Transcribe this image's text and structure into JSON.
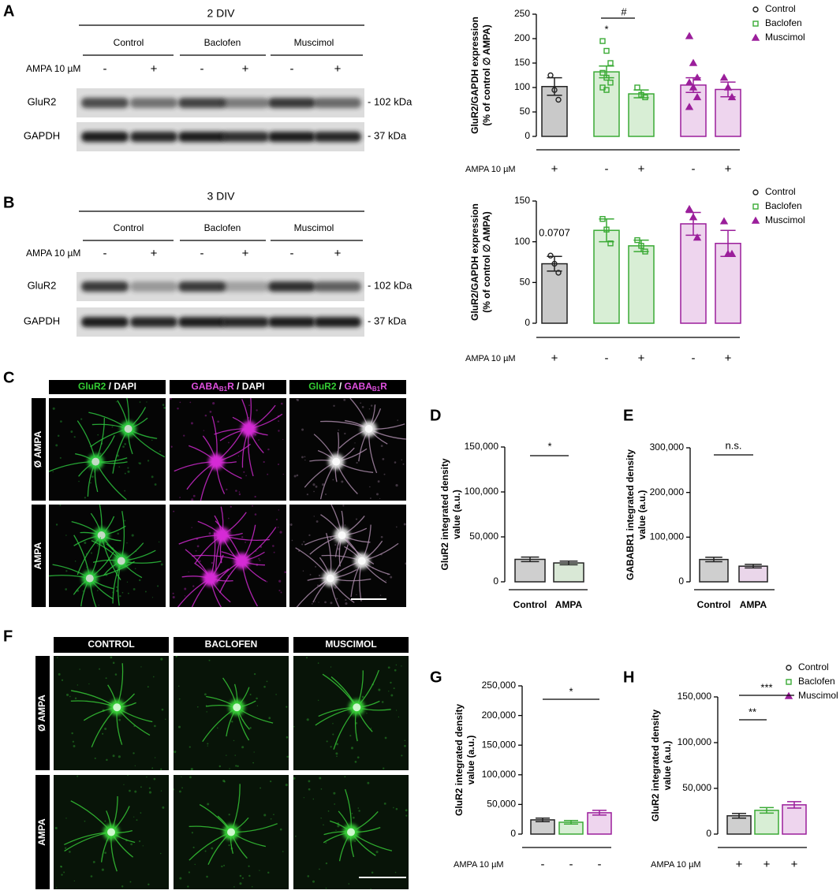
{
  "blots": [
    {
      "label": "A",
      "title": "2 DIV",
      "groups": [
        "Control",
        "Baclofen",
        "Muscimol"
      ],
      "row_label": "AMPA 10 µM",
      "lanes": [
        "-",
        "+",
        "-",
        "+",
        "-",
        "+"
      ],
      "bands": [
        {
          "name": "GluR2",
          "size": "- 102 kDa"
        },
        {
          "name": "GAPDH",
          "size": "- 37 kDa"
        }
      ]
    },
    {
      "label": "B",
      "title": "3 DIV",
      "groups": [
        "Control",
        "Baclofen",
        "Muscimol"
      ],
      "row_label": "AMPA 10 µM",
      "lanes": [
        "-",
        "+",
        "-",
        "+",
        "-",
        "+"
      ],
      "bands": [
        {
          "name": "GluR2",
          "size": "- 102 kDa"
        },
        {
          "name": "GAPDH",
          "size": "- 37 kDa"
        }
      ]
    }
  ],
  "micrographs": [
    {
      "label": "C",
      "columns": [
        [
          "GluR2",
          " / DAPI"
        ],
        [
          "GABA",
          "B1",
          "R",
          " / DAPI"
        ],
        [
          "GluR2",
          " / ",
          "GABA",
          "B1",
          "R"
        ]
      ],
      "rows": [
        "Ø AMPA",
        "AMPA"
      ]
    },
    {
      "label": "F",
      "columns": [
        [
          "CONTROL"
        ],
        [
          "BACLOFEN"
        ],
        [
          "MUSCIMOL"
        ]
      ],
      "rows": [
        "Ø AMPA",
        "AMPA"
      ]
    }
  ],
  "chart_data": [
    {
      "type": "bar",
      "ylabel": [
        "GluR2/GAPDH expression",
        "(% of control ∅ AMPA)"
      ],
      "xlabel": "AMPA 10 µM",
      "ylim": [
        0,
        250
      ],
      "yticks": [
        0,
        50,
        100,
        150,
        200,
        250
      ],
      "categories": [
        "+",
        "-",
        "+",
        "-",
        "+"
      ],
      "annotations": [
        "*",
        "#"
      ],
      "series": [
        {
          "name": "Control",
          "color": "#222222",
          "fill": "#c9c9c9",
          "marker": "circle",
          "values": [
            102,
            null,
            null,
            null,
            null
          ],
          "errors": [
            18,
            null,
            null,
            null,
            null
          ],
          "points": [
            [
              125,
              95,
              75
            ],
            null,
            null,
            null,
            null
          ]
        },
        {
          "name": "Baclofen",
          "color": "#3aaa35",
          "fill": "#d8eed5",
          "marker": "square",
          "values": [
            null,
            132,
            87,
            null,
            null
          ],
          "errors": [
            null,
            12,
            8,
            null,
            null
          ],
          "points": [
            null,
            [
              195,
              175,
              150,
              130,
              120,
              110,
              100,
              95
            ],
            [
              100,
              85,
              80
            ],
            null,
            null
          ]
        },
        {
          "name": "Muscimol",
          "color": "#9b1f9b",
          "fill": "#eed5ee",
          "marker": "triangle",
          "values": [
            null,
            null,
            null,
            105,
            96
          ],
          "errors": [
            null,
            null,
            null,
            15,
            15
          ],
          "points": [
            null,
            null,
            null,
            [
              205,
              150,
              120,
              110,
              100,
              80,
              60
            ],
            [
              120,
              100,
              80
            ]
          ]
        }
      ]
    },
    {
      "type": "bar",
      "ylabel": [
        "GluR2/GAPDH expression",
        "(% of control ∅ AMPA)"
      ],
      "xlabel": "AMPA 10 µM",
      "ylim": [
        0,
        150
      ],
      "yticks": [
        0,
        50,
        100,
        150
      ],
      "categories": [
        "+",
        "-",
        "+",
        "-",
        "+"
      ],
      "annotations": [
        "0.0707"
      ],
      "series": [
        {
          "name": "Control",
          "color": "#222222",
          "fill": "#c9c9c9",
          "marker": "circle",
          "values": [
            73,
            null,
            null,
            null,
            null
          ],
          "errors": [
            9,
            null,
            null,
            null,
            null
          ],
          "points": [
            [
              83,
              73,
              62
            ],
            null,
            null,
            null,
            null
          ]
        },
        {
          "name": "Baclofen",
          "color": "#3aaa35",
          "fill": "#d8eed5",
          "marker": "square",
          "values": [
            null,
            114,
            95,
            null,
            null
          ],
          "errors": [
            null,
            14,
            7,
            null,
            null
          ],
          "points": [
            null,
            [
              128,
              115,
              98
            ],
            [
              102,
              95,
              88
            ],
            null,
            null
          ]
        },
        {
          "name": "Muscimol",
          "color": "#9b1f9b",
          "fill": "#eed5ee",
          "marker": "triangle",
          "values": [
            null,
            null,
            null,
            122,
            98
          ],
          "errors": [
            null,
            null,
            null,
            14,
            16
          ],
          "points": [
            null,
            null,
            null,
            [
              140,
              130,
              105
            ],
            [
              125,
              85,
              85
            ]
          ]
        }
      ]
    },
    {
      "type": "bar",
      "label": "D",
      "ylabel": [
        "GluR2 integrated density",
        "value (a.u.)"
      ],
      "ylim": [
        0,
        150000
      ],
      "yticks": [
        0,
        {
          "value": 50000,
          "label": "50,000"
        },
        {
          "value": 100000,
          "label": "100,000"
        },
        {
          "value": 150000,
          "label": "150,000"
        }
      ],
      "categories": [
        "Control",
        "AMPA"
      ],
      "annotations": [
        "*"
      ],
      "series": [
        {
          "color": "#222222",
          "fill": "#cfcfcf",
          "values": [
            25000,
            null
          ],
          "errors": [
            2500,
            null
          ]
        },
        {
          "color": "#222222",
          "fill": "#d9e8d6",
          "values": [
            null,
            21000
          ],
          "errors": [
            null,
            2000
          ]
        }
      ]
    },
    {
      "type": "bar",
      "label": "E",
      "ylabel": [
        "GABABR1 integrated density",
        "value (a.u.)"
      ],
      "ylim": [
        0,
        300000
      ],
      "yticks": [
        0,
        {
          "value": 100000,
          "label": "100,000"
        },
        {
          "value": 200000,
          "label": "200,000"
        },
        {
          "value": 300000,
          "label": "300,000"
        }
      ],
      "categories": [
        "Control",
        "AMPA"
      ],
      "annotations": [
        "n.s."
      ],
      "series": [
        {
          "color": "#222222",
          "fill": "#cfcfcf",
          "values": [
            50000,
            null
          ],
          "errors": [
            5000,
            null
          ]
        },
        {
          "color": "#222222",
          "fill": "#ead6ea",
          "values": [
            null,
            35000
          ],
          "errors": [
            null,
            4000
          ]
        }
      ]
    },
    {
      "type": "bar",
      "label": "G",
      "ylabel": [
        "GluR2 integrated density",
        "value (a.u.)"
      ],
      "xlabel": "AMPA 10 µM",
      "ylim": [
        0,
        250000
      ],
      "yticks": [
        0,
        {
          "value": 50000,
          "label": "50,000"
        },
        {
          "value": 100000,
          "label": "100,000"
        },
        {
          "value": 150000,
          "label": "150,000"
        },
        {
          "value": 200000,
          "label": "200,000"
        },
        {
          "value": 250000,
          "label": "250,000"
        }
      ],
      "categories": [
        "-",
        "-",
        "-"
      ],
      "annotations": [
        "*"
      ],
      "series": [
        {
          "color": "#222222",
          "fill": "#cfcfcf",
          "values": [
            24000,
            null,
            null
          ],
          "errors": [
            3000,
            null,
            null
          ]
        },
        {
          "color": "#3aaa35",
          "fill": "#d8eed5",
          "values": [
            null,
            20000,
            null
          ],
          "errors": [
            null,
            3000,
            null
          ]
        },
        {
          "color": "#9b1f9b",
          "fill": "#eed5ee",
          "values": [
            null,
            null,
            36000
          ],
          "errors": [
            null,
            null,
            4000
          ]
        }
      ]
    },
    {
      "type": "bar",
      "label": "H",
      "ylabel": [
        "GluR2 integrated density",
        "value (a.u.)"
      ],
      "xlabel": "AMPA 10 µM",
      "ylim": [
        0,
        150000
      ],
      "yticks": [
        0,
        {
          "value": 50000,
          "label": "50,000"
        },
        {
          "value": 100000,
          "label": "100,000"
        },
        {
          "value": 150000,
          "label": "150,000"
        }
      ],
      "categories": [
        "+",
        "+",
        "+"
      ],
      "annotations": [
        "**",
        "***"
      ],
      "series": [
        {
          "name": "Control",
          "color": "#222222",
          "fill": "#cfcfcf",
          "marker": "circle",
          "values": [
            20000,
            null,
            null
          ],
          "errors": [
            2500,
            null,
            null
          ]
        },
        {
          "name": "Baclofen",
          "color": "#3aaa35",
          "fill": "#d8eed5",
          "marker": "square",
          "values": [
            null,
            26000,
            null
          ],
          "errors": [
            null,
            3000,
            null
          ]
        },
        {
          "name": "Muscimol",
          "color": "#9b1f9b",
          "fill": "#eed5ee",
          "marker": "triangle",
          "values": [
            null,
            null,
            32000
          ],
          "errors": [
            null,
            null,
            3500
          ]
        }
      ]
    }
  ]
}
